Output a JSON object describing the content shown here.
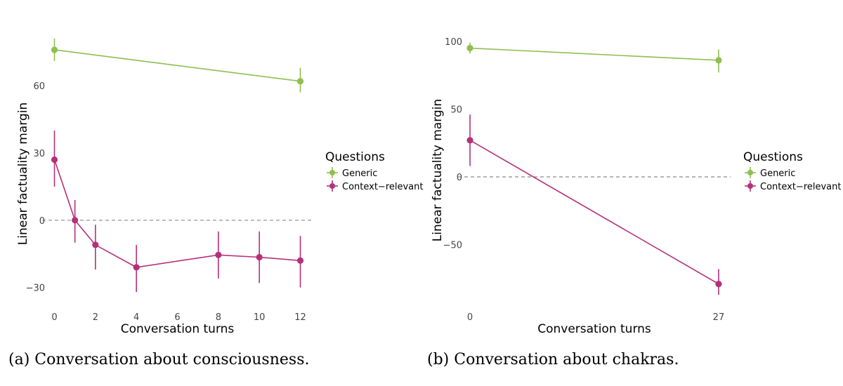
{
  "chart_data": [
    {
      "type": "line",
      "caption": "(a) Conversation about consciousness.",
      "xlabel": "Conversation turns",
      "ylabel": "Linear factuality margin",
      "x_ticks": [
        0,
        2,
        4,
        6,
        8,
        10,
        12
      ],
      "y_ticks": [
        -30,
        0,
        30,
        60
      ],
      "x_tick_labels": [
        "0",
        "2",
        "4",
        "6",
        "8",
        "10",
        "12"
      ],
      "y_tick_labels": [
        "−30",
        "0",
        "30",
        "60"
      ],
      "xlim": [
        -0.6,
        12.6
      ],
      "ylim": [
        -37,
        81
      ],
      "reference_line": 0,
      "legend_title": "Questions",
      "series": [
        {
          "name": "Generic",
          "color": "#8fbf4e",
          "points": [
            {
              "x": 0,
              "y": 76,
              "lo": 71,
              "hi": 81
            },
            {
              "x": 12,
              "y": 62,
              "lo": 57,
              "hi": 68
            }
          ]
        },
        {
          "name": "Context−relevant",
          "color": "#b5307a",
          "points": [
            {
              "x": 0,
              "y": 27,
              "lo": 15,
              "hi": 40
            },
            {
              "x": 1,
              "y": 0,
              "lo": -10,
              "hi": 9
            },
            {
              "x": 2,
              "y": -11,
              "lo": -22,
              "hi": -2
            },
            {
              "x": 4,
              "y": -21,
              "lo": -32,
              "hi": -11
            },
            {
              "x": 8,
              "y": -15.5,
              "lo": -26,
              "hi": -5
            },
            {
              "x": 10,
              "y": -16.5,
              "lo": -28,
              "hi": -5
            },
            {
              "x": 12,
              "y": -18,
              "lo": -30,
              "hi": -7
            }
          ]
        }
      ]
    },
    {
      "type": "line",
      "caption": "(b) Conversation about chakras.",
      "xlabel": "Conversation turns",
      "ylabel": "Linear factuality margin",
      "x_ticks": [
        0,
        27
      ],
      "y_ticks": [
        -50,
        0,
        50,
        100
      ],
      "x_tick_labels": [
        "0",
        "27"
      ],
      "y_tick_labels": [
        "−50",
        "0",
        "50",
        "100"
      ],
      "xlim": [
        -1.3,
        28.3
      ],
      "ylim": [
        -88,
        102
      ],
      "reference_line": 0,
      "legend_title": "Questions",
      "series": [
        {
          "name": "Generic",
          "color": "#8fbf4e",
          "points": [
            {
              "x": 0,
              "y": 95,
              "lo": 91,
              "hi": 99
            },
            {
              "x": 27,
              "y": 86,
              "lo": 77,
              "hi": 94
            }
          ]
        },
        {
          "name": "Context−relevant",
          "color": "#b5307a",
          "points": [
            {
              "x": 0,
              "y": 27,
              "lo": 8,
              "hi": 46
            },
            {
              "x": 27,
              "y": -79,
              "lo": -87,
              "hi": -68
            }
          ]
        }
      ]
    }
  ]
}
